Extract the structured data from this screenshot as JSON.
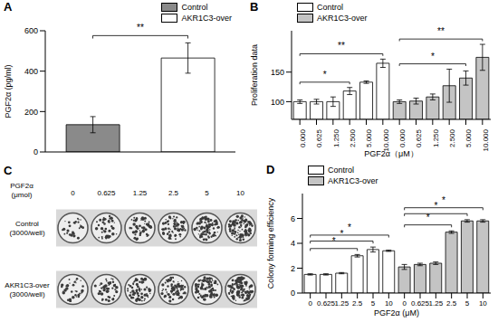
{
  "chart_data": [
    {
      "type": "bar",
      "title": "A",
      "y_label": "PGF2α (pg/ml)",
      "categories": [
        "Control",
        "AKR1C3-over"
      ],
      "values": [
        135,
        465
      ],
      "errors": [
        40,
        75
      ],
      "colors": [
        "#8a8a8a",
        "#ffffff"
      ],
      "ylim": [
        0,
        600
      ],
      "yticks": [
        0,
        200,
        400,
        600
      ],
      "grid": false,
      "legend": "top-right",
      "tick_labels": "y",
      "annotations": [
        {
          "from": "Control",
          "to": "AKR1C3-over",
          "text": "**"
        }
      ]
    },
    {
      "type": "bar",
      "title": "B",
      "y_label": "Proliferation data",
      "x_label": "PGF2α（μM）",
      "categories": [
        "0.000",
        "0.625",
        "1.250",
        "2.500",
        "5.000",
        "10.000",
        "0.000",
        "0.625",
        "1.250",
        "2.500",
        "5.000",
        "10.000"
      ],
      "series": [
        {
          "name": "Control",
          "color": "#ffffff",
          "values": [
            100,
            100,
            100,
            118,
            133,
            165,
            null,
            null,
            null,
            null,
            null,
            null
          ],
          "errors": [
            3,
            4,
            8,
            6,
            2,
            7,
            null,
            null,
            null,
            null,
            null,
            null
          ]
        },
        {
          "name": "AKR1C3-over",
          "color": "#c4c4c4",
          "values": [
            null,
            null,
            null,
            null,
            null,
            null,
            100,
            101,
            108,
            127,
            140,
            175
          ],
          "errors": [
            null,
            null,
            null,
            null,
            null,
            null,
            3,
            5,
            5,
            28,
            12,
            22
          ]
        }
      ],
      "ylim": [
        70,
        220
      ],
      "yticks": [
        100,
        150
      ],
      "grid": false,
      "legend": "top-left",
      "annotations": [
        {
          "series": "Control",
          "from": "0.000",
          "to": "2.500",
          "text": "*"
        },
        {
          "series": "Control",
          "from": "0.000",
          "to": "10.000",
          "text": "**"
        },
        {
          "series": "AKR1C3-over",
          "from": "0.000",
          "to": "5.000",
          "text": "*"
        },
        {
          "series": "AKR1C3-over",
          "from": "0.000",
          "to": "10.000",
          "text": "**"
        }
      ]
    },
    {
      "type": "bar",
      "title": "D",
      "y_label": "Colony forming efficiency",
      "x_label": "PGF2α (μM)",
      "categories": [
        "0",
        "0.625",
        "1.25",
        "2.5",
        "5",
        "10",
        "0",
        "0.625",
        "1.25",
        "2.5",
        "5",
        "10"
      ],
      "series": [
        {
          "name": "Control",
          "color": "#ffffff",
          "values": [
            1.5,
            1.5,
            1.6,
            3.0,
            3.5,
            3.4,
            null,
            null,
            null,
            null,
            null,
            null
          ],
          "errors": [
            0.05,
            0.05,
            0.05,
            0.1,
            0.2,
            0.05,
            null,
            null,
            null,
            null,
            null,
            null
          ]
        },
        {
          "name": "AKR1C3-over",
          "color": "#c4c4c4",
          "values": [
            null,
            null,
            null,
            null,
            null,
            null,
            2.1,
            2.3,
            2.4,
            4.9,
            5.8,
            5.8
          ],
          "errors": [
            null,
            null,
            null,
            null,
            null,
            null,
            0.2,
            0.1,
            0.1,
            0.1,
            0.1,
            0.1
          ]
        }
      ],
      "ylim": [
        0,
        8
      ],
      "yticks": [
        0,
        2,
        4,
        6
      ],
      "grid": false,
      "legend": "top-left",
      "annotations": [
        {
          "series": "Control",
          "from": "0",
          "to": "2.5",
          "text": "*"
        },
        {
          "series": "Control",
          "from": "0",
          "to": "5",
          "text": "*"
        },
        {
          "series": "Control",
          "from": "0",
          "to": "10",
          "text": "*"
        },
        {
          "series": "AKR1C3-over",
          "from": "0",
          "to": "2.5",
          "text": "*"
        },
        {
          "series": "AKR1C3-over",
          "from": "0",
          "to": "5",
          "text": "*"
        },
        {
          "series": "AKR1C3-over",
          "from": "0",
          "to": "10",
          "text": "*"
        }
      ]
    }
  ],
  "photo_panel": {
    "title": "C",
    "corner_label": [
      "PGF2α",
      "(μmol)"
    ],
    "columns": [
      "0",
      "0.625",
      "1.25",
      "2.5",
      "5",
      "10"
    ],
    "rows": [
      [
        "Control",
        "(3000/well)"
      ],
      [
        "AKR1C3-over",
        "(3000/well)"
      ]
    ]
  }
}
